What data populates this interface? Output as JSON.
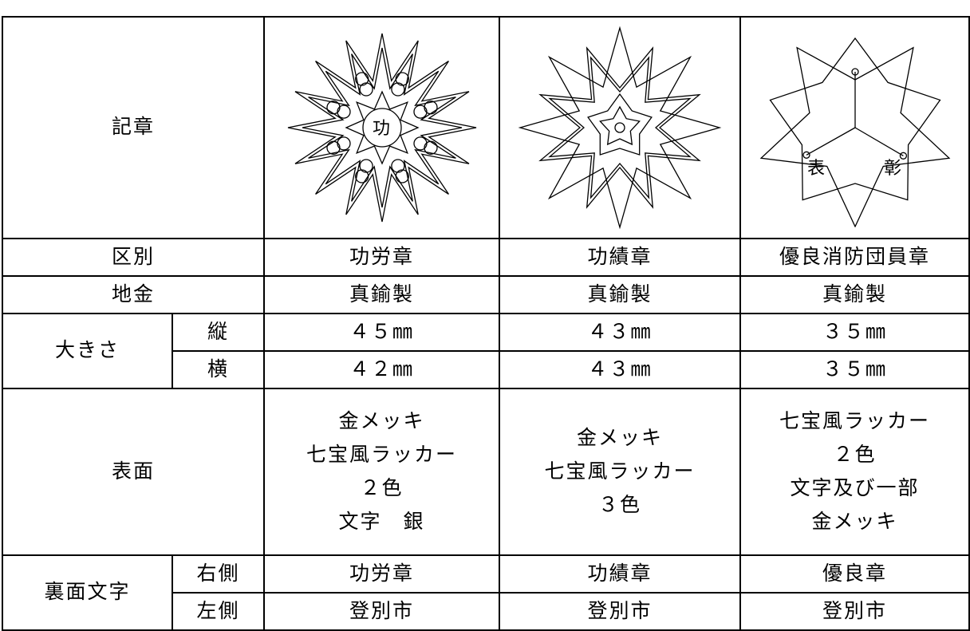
{
  "table": {
    "emblem_label": "記章",
    "emblem_marks": {
      "first": "功",
      "third": [
        "表",
        "彰"
      ]
    },
    "kind": {
      "label": "区別",
      "values": [
        "功労章",
        "功績章",
        "優良消防団員章"
      ]
    },
    "metal": {
      "label": "地金",
      "values": [
        "真鍮製",
        "真鍮製",
        "真鍮製"
      ]
    },
    "size": {
      "label": "大きさ",
      "rows": [
        {
          "label": "縦",
          "values": [
            "４５㎜",
            "４３㎜",
            "３５㎜"
          ]
        },
        {
          "label": "横",
          "values": [
            "４２㎜",
            "４３㎜",
            "３５㎜"
          ]
        }
      ]
    },
    "surface": {
      "label": "表面",
      "values": [
        [
          "金メッキ",
          "七宝風ラッカー",
          "２色",
          "文字　銀"
        ],
        [
          "金メッキ",
          "七宝風ラッカー",
          "３色"
        ],
        [
          "七宝風ラッカー",
          "２色",
          "文字及び一部",
          "金メッキ"
        ]
      ]
    },
    "back": {
      "label": "裏面文字",
      "rows": [
        {
          "label": "右側",
          "values": [
            "功労章",
            "功績章",
            "優良章"
          ]
        },
        {
          "label": "左側",
          "values": [
            "登別市",
            "登別市",
            "登別市"
          ]
        }
      ]
    }
  }
}
